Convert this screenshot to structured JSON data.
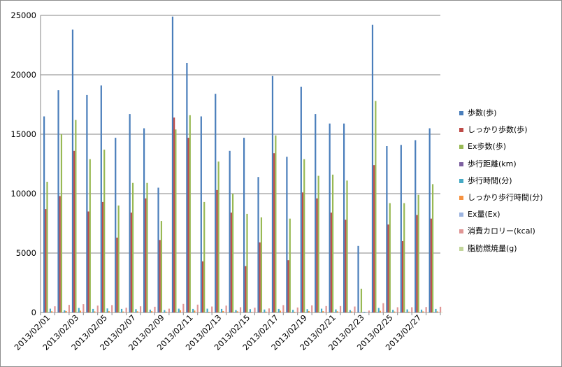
{
  "chart_data": {
    "type": "bar",
    "categories": [
      "2013/02/01",
      "2013/02/02",
      "2013/02/03",
      "2013/02/04",
      "2013/02/05",
      "2013/02/06",
      "2013/02/07",
      "2013/02/08",
      "2013/02/09",
      "2013/02/10",
      "2013/02/11",
      "2013/02/12",
      "2013/02/13",
      "2013/02/14",
      "2013/02/15",
      "2013/02/16",
      "2013/02/17",
      "2013/02/18",
      "2013/02/19",
      "2013/02/20",
      "2013/02/21",
      "2013/02/22",
      "2013/02/23",
      "2013/02/24",
      "2013/02/25",
      "2013/02/26",
      "2013/02/27",
      "2013/02/28"
    ],
    "tick_labels": [
      "2013/02/01",
      "2013/02/03",
      "2013/02/05",
      "2013/02/07",
      "2013/02/09",
      "2013/02/11",
      "2013/02/13",
      "2013/02/15",
      "2013/02/17",
      "2013/02/19",
      "2013/02/21",
      "2013/02/23",
      "2013/02/25",
      "2013/02/27"
    ],
    "yticks": [
      "0",
      "5000",
      "10000",
      "15000",
      "20000",
      "25000"
    ],
    "ylim": [
      0,
      25000
    ],
    "grid": true,
    "legend_position": "right",
    "series": [
      {
        "name": "歩数(歩)",
        "color": "#4a7ebb",
        "values": [
          16500,
          18700,
          23800,
          18300,
          19100,
          14700,
          16700,
          15500,
          10500,
          24900,
          21000,
          16500,
          18400,
          13600,
          14700,
          11400,
          19900,
          13100,
          19000,
          16700,
          15900,
          15900,
          5600,
          24200,
          14000,
          14100,
          14500,
          15500
        ]
      },
      {
        "name": "しっかり歩数(歩)",
        "color": "#be4b48",
        "values": [
          8700,
          9800,
          13600,
          8500,
          9300,
          6300,
          8400,
          9600,
          6100,
          16400,
          14700,
          4300,
          10300,
          8400,
          3900,
          5900,
          13400,
          4400,
          10100,
          9600,
          8400,
          7800,
          0,
          12400,
          7400,
          6000,
          8200,
          7900
        ]
      },
      {
        "name": "Ex歩数(歩)",
        "color": "#98b954",
        "values": [
          11000,
          15000,
          16200,
          12900,
          13700,
          9000,
          10900,
          10900,
          7700,
          15400,
          16600,
          9300,
          12700,
          10000,
          8300,
          8000,
          14900,
          7900,
          12900,
          11500,
          11600,
          11100,
          2000,
          17800,
          9200,
          9200,
          9900,
          10800
        ]
      },
      {
        "name": "歩行距離(km)",
        "color": "#7d60a0",
        "values": [
          12,
          13,
          17,
          13,
          13,
          10,
          12,
          11,
          7,
          18,
          15,
          12,
          13,
          10,
          10,
          8,
          14,
          9,
          13,
          12,
          11,
          11,
          4,
          17,
          10,
          10,
          10,
          11
        ]
      },
      {
        "name": "歩行時間(分)",
        "color": "#46aac5",
        "values": [
          320,
          180,
          380,
          300,
          340,
          300,
          280,
          240,
          200,
          320,
          300,
          320,
          300,
          200,
          280,
          250,
          300,
          220,
          280,
          320,
          260,
          200,
          60,
          380,
          220,
          260,
          240,
          300
        ]
      },
      {
        "name": "しっかり歩行時間(分)",
        "color": "#f69240",
        "values": [
          100,
          120,
          150,
          90,
          110,
          80,
          100,
          110,
          70,
          180,
          160,
          60,
          120,
          100,
          50,
          70,
          150,
          60,
          120,
          110,
          100,
          90,
          0,
          140,
          80,
          70,
          90,
          90
        ]
      },
      {
        "name": "Ex量(Ex)",
        "color": "#9cb4e0",
        "values": [
          4,
          5,
          6,
          4,
          5,
          3,
          4,
          4,
          2,
          6,
          6,
          3,
          5,
          4,
          2,
          3,
          6,
          2,
          5,
          4,
          4,
          4,
          1,
          7,
          3,
          3,
          4,
          4
        ]
      },
      {
        "name": "消費カロリー(kcal)",
        "color": "#e09695",
        "values": [
          520,
          640,
          700,
          580,
          620,
          400,
          520,
          480,
          320,
          720,
          660,
          500,
          580,
          440,
          400,
          340,
          620,
          420,
          600,
          540,
          540,
          500,
          160,
          780,
          440,
          440,
          460,
          480
        ]
      },
      {
        "name": "脂肪燃焼量(g)",
        "color": "#c3d69b",
        "values": [
          30,
          36,
          40,
          33,
          35,
          23,
          30,
          28,
          18,
          41,
          38,
          28,
          33,
          25,
          23,
          20,
          36,
          24,
          34,
          31,
          31,
          29,
          9,
          45,
          25,
          25,
          26,
          28
        ]
      }
    ]
  }
}
